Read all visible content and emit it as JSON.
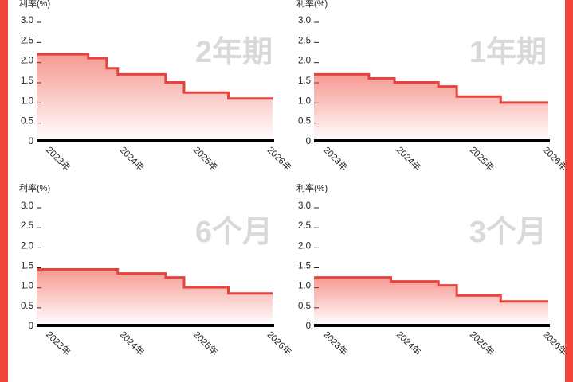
{
  "chart_data": [
    {
      "type": "line",
      "step": true,
      "title": "2年期",
      "ylabel": "利率(%)",
      "y_ticks": [
        {
          "value": 0,
          "label": "0"
        },
        {
          "value": 0.5,
          "label": "0.5"
        },
        {
          "value": 1.0,
          "label": "1.0"
        },
        {
          "value": 1.5,
          "label": "1.5"
        },
        {
          "value": 2.0,
          "label": "2.0"
        },
        {
          "value": 2.5,
          "label": "2.5"
        },
        {
          "value": 3.0,
          "label": "3.0"
        }
      ],
      "ylim": [
        0,
        3.0
      ],
      "x_ticks": [
        {
          "value": 2023.0,
          "label": "2023年"
        },
        {
          "value": 2024.0,
          "label": "2024年"
        },
        {
          "value": 2025.0,
          "label": "2025年"
        },
        {
          "value": 2026.0,
          "label": "2026年"
        }
      ],
      "xlim": [
        2022.9,
        2026.1
      ],
      "series": [
        {
          "color": "#e8433a",
          "x": [
            2022.9,
            2023.6,
            2023.85,
            2024.0,
            2024.65,
            2024.9,
            2025.5,
            2026.1
          ],
          "y": [
            2.15,
            2.05,
            1.8,
            1.65,
            1.45,
            1.2,
            1.05,
            1.05
          ]
        }
      ]
    },
    {
      "type": "line",
      "step": true,
      "title": "1年期",
      "ylabel": "利率(%)",
      "y_ticks": [
        {
          "value": 0,
          "label": "0"
        },
        {
          "value": 0.5,
          "label": "0.5"
        },
        {
          "value": 1.0,
          "label": "1.0"
        },
        {
          "value": 1.5,
          "label": "1.5"
        },
        {
          "value": 2.0,
          "label": "2.0"
        },
        {
          "value": 2.5,
          "label": "2.5"
        },
        {
          "value": 3.0,
          "label": "3.0"
        }
      ],
      "ylim": [
        0,
        3.0
      ],
      "x_ticks": [
        {
          "value": 2023.0,
          "label": "2023年"
        },
        {
          "value": 2024.0,
          "label": "2024年"
        },
        {
          "value": 2025.0,
          "label": "2025年"
        },
        {
          "value": 2026.0,
          "label": "2026年"
        }
      ],
      "xlim": [
        2022.9,
        2026.1
      ],
      "series": [
        {
          "color": "#e8433a",
          "x": [
            2022.9,
            2023.65,
            2024.0,
            2024.6,
            2024.85,
            2025.45,
            2026.1
          ],
          "y": [
            1.65,
            1.55,
            1.45,
            1.35,
            1.1,
            0.95,
            0.95
          ]
        }
      ]
    },
    {
      "type": "line",
      "step": true,
      "title": "6个月",
      "ylabel": "利率(%)",
      "y_ticks": [
        {
          "value": 0,
          "label": "0"
        },
        {
          "value": 0.5,
          "label": "0.5"
        },
        {
          "value": 1.0,
          "label": "1.0"
        },
        {
          "value": 1.5,
          "label": "1.5"
        },
        {
          "value": 2.0,
          "label": "2.0"
        },
        {
          "value": 2.5,
          "label": "2.5"
        },
        {
          "value": 3.0,
          "label": "3.0"
        }
      ],
      "ylim": [
        0,
        3.0
      ],
      "x_ticks": [
        {
          "value": 2023.0,
          "label": "2023年"
        },
        {
          "value": 2024.0,
          "label": "2024年"
        },
        {
          "value": 2025.0,
          "label": "2025年"
        },
        {
          "value": 2026.0,
          "label": "2026年"
        }
      ],
      "xlim": [
        2022.9,
        2026.1
      ],
      "series": [
        {
          "color": "#e8433a",
          "x": [
            2022.9,
            2024.0,
            2024.65,
            2024.9,
            2025.5,
            2026.1
          ],
          "y": [
            1.4,
            1.3,
            1.2,
            0.95,
            0.8,
            0.8
          ]
        }
      ]
    },
    {
      "type": "line",
      "step": true,
      "title": "3个月",
      "ylabel": "利率(%)",
      "y_ticks": [
        {
          "value": 0,
          "label": "0"
        },
        {
          "value": 0.5,
          "label": "0.5"
        },
        {
          "value": 1.0,
          "label": "1.0"
        },
        {
          "value": 1.5,
          "label": "1.5"
        },
        {
          "value": 2.0,
          "label": "2.0"
        },
        {
          "value": 2.5,
          "label": "2.5"
        },
        {
          "value": 3.0,
          "label": "3.0"
        }
      ],
      "ylim": [
        0,
        3.0
      ],
      "x_ticks": [
        {
          "value": 2023.0,
          "label": "2023年"
        },
        {
          "value": 2024.0,
          "label": "2024年"
        },
        {
          "value": 2025.0,
          "label": "2025年"
        },
        {
          "value": 2026.0,
          "label": "2026年"
        }
      ],
      "xlim": [
        2022.9,
        2026.1
      ],
      "series": [
        {
          "color": "#e8433a",
          "x": [
            2022.9,
            2023.95,
            2024.6,
            2024.85,
            2025.45,
            2026.1
          ],
          "y": [
            1.2,
            1.1,
            1.0,
            0.75,
            0.6,
            0.6
          ]
        }
      ]
    }
  ]
}
